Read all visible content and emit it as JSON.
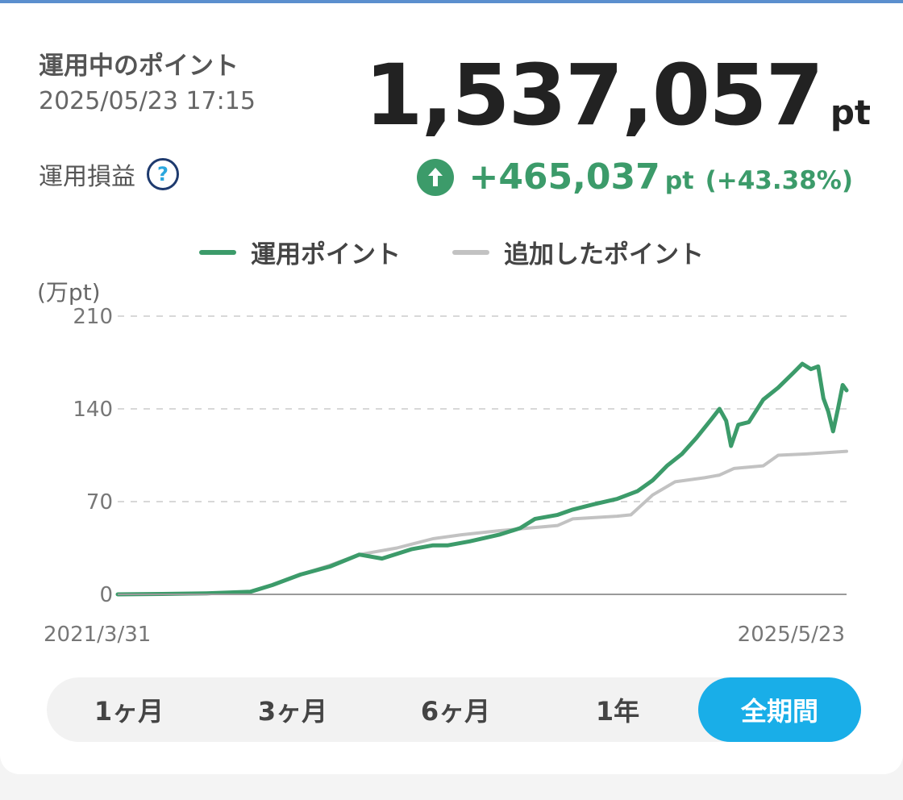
{
  "summary": {
    "label": "運用中のポイント",
    "updated_at": "2025/05/23 17:15",
    "balance_value": "1,537,057",
    "balance_unit": "pt"
  },
  "profit_loss": {
    "label": "運用損益",
    "help_icon": "question-circle-icon",
    "help_glyph": "?",
    "direction_icon": "arrow-up-circle-icon",
    "amount": "+465,037",
    "unit": "pt",
    "percent": "(+43.38%)"
  },
  "legend": [
    {
      "label": "運用ポイント",
      "color": "#3c9b6a"
    },
    {
      "label": "追加したポイント",
      "color": "#c2c2c2"
    }
  ],
  "colors": {
    "accent": "#3c9b6a",
    "added": "#c2c2c2",
    "active_range": "#19aee8"
  },
  "chart_data": {
    "type": "line",
    "unit_label": "(万pt)",
    "y_ticks": [
      0,
      70,
      140,
      210
    ],
    "ylim": [
      0,
      210
    ],
    "x_start_label": "2021/3/31",
    "x_end_label": "2025/5/23",
    "xlim": [
      "2021-03-31",
      "2025-05-23"
    ],
    "grid": true,
    "legend_position": "top-center",
    "series": [
      {
        "name": "運用ポイント",
        "color": "#3c9b6a",
        "points": [
          [
            "2021-03-31",
            0
          ],
          [
            "2021-07-01",
            0.3
          ],
          [
            "2021-10-01",
            0.8
          ],
          [
            "2022-01-01",
            2
          ],
          [
            "2022-02-15",
            7
          ],
          [
            "2022-04-15",
            15
          ],
          [
            "2022-06-15",
            21
          ],
          [
            "2022-08-15",
            30
          ],
          [
            "2022-10-01",
            27
          ],
          [
            "2022-12-01",
            34
          ],
          [
            "2023-01-15",
            37
          ],
          [
            "2023-02-15",
            37
          ],
          [
            "2023-04-01",
            40
          ],
          [
            "2023-06-01",
            45
          ],
          [
            "2023-07-15",
            50
          ],
          [
            "2023-08-15",
            57
          ],
          [
            "2023-10-01",
            60
          ],
          [
            "2023-11-01",
            64
          ],
          [
            "2023-12-15",
            68
          ],
          [
            "2024-02-01",
            72
          ],
          [
            "2024-03-15",
            78
          ],
          [
            "2024-04-15",
            86
          ],
          [
            "2024-05-15",
            97
          ],
          [
            "2024-06-15",
            106
          ],
          [
            "2024-07-15",
            118
          ],
          [
            "2024-08-15",
            132
          ],
          [
            "2024-09-01",
            140
          ],
          [
            "2024-09-15",
            131
          ],
          [
            "2024-09-25",
            112
          ],
          [
            "2024-10-10",
            128
          ],
          [
            "2024-11-01",
            130
          ],
          [
            "2024-12-01",
            147
          ],
          [
            "2025-01-01",
            156
          ],
          [
            "2025-02-01",
            167
          ],
          [
            "2025-02-20",
            174
          ],
          [
            "2025-03-10",
            170
          ],
          [
            "2025-03-25",
            172
          ],
          [
            "2025-04-05",
            148
          ],
          [
            "2025-04-15",
            138
          ],
          [
            "2025-04-25",
            123
          ],
          [
            "2025-05-05",
            140
          ],
          [
            "2025-05-15",
            158
          ],
          [
            "2025-05-23",
            154
          ]
        ]
      },
      {
        "name": "追加したポイント",
        "color": "#c2c2c2",
        "points": [
          [
            "2021-03-31",
            0
          ],
          [
            "2021-10-01",
            0.5
          ],
          [
            "2022-01-01",
            2
          ],
          [
            "2022-02-15",
            7
          ],
          [
            "2022-04-15",
            15
          ],
          [
            "2022-06-15",
            22
          ],
          [
            "2022-08-15",
            30
          ],
          [
            "2022-11-01",
            35
          ],
          [
            "2023-01-15",
            42
          ],
          [
            "2023-03-15",
            45
          ],
          [
            "2023-06-01",
            48
          ],
          [
            "2023-10-01",
            52
          ],
          [
            "2023-11-01",
            57
          ],
          [
            "2024-02-01",
            59
          ],
          [
            "2024-03-01",
            60
          ],
          [
            "2024-04-15",
            75
          ],
          [
            "2024-06-01",
            85
          ],
          [
            "2024-08-01",
            88
          ],
          [
            "2024-09-01",
            90
          ],
          [
            "2024-10-01",
            95
          ],
          [
            "2024-12-01",
            97
          ],
          [
            "2025-01-01",
            105
          ],
          [
            "2025-03-01",
            106
          ],
          [
            "2025-05-23",
            108
          ]
        ]
      }
    ]
  },
  "ranges": [
    {
      "label": "1ヶ月",
      "active": false
    },
    {
      "label": "3ヶ月",
      "active": false
    },
    {
      "label": "6ヶ月",
      "active": false
    },
    {
      "label": "1年",
      "active": false
    },
    {
      "label": "全期間",
      "active": true
    }
  ]
}
